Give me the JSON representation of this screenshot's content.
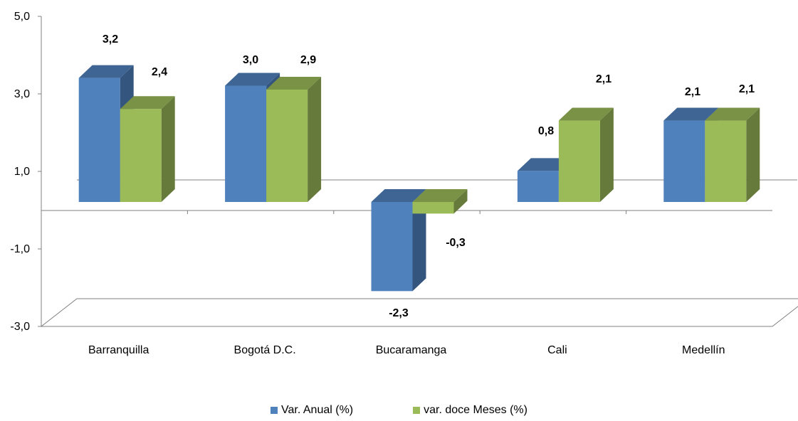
{
  "chart_data": {
    "type": "bar",
    "style": "3d-clustered-column",
    "categories": [
      "Barranquilla",
      "Bogotá D.C.",
      "Bucaramanga",
      "Cali",
      "Medellín"
    ],
    "series": [
      {
        "name": "Var. Anual (%)",
        "values": [
          3.2,
          3.0,
          -2.3,
          0.8,
          2.1
        ],
        "labels": [
          "3,2",
          "3,0",
          "-2,3",
          "0,8",
          "2,1"
        ],
        "color": "#4f81bd"
      },
      {
        "name": "var. doce Meses (%)",
        "values": [
          2.4,
          2.9,
          -0.3,
          2.1,
          2.1
        ],
        "labels": [
          "2,4",
          "2,9",
          "-0,3",
          "2,1",
          "2,1"
        ],
        "color": "#9bbb59"
      }
    ],
    "yticks": [
      5.0,
      3.0,
      1.0,
      -1.0,
      -3.0
    ],
    "ytick_labels": [
      "5,0",
      "3,0",
      "1,0",
      "-1,0",
      "-3,0"
    ],
    "ylim": [
      -3.0,
      5.0
    ],
    "legend_position": "bottom",
    "grid": false
  }
}
